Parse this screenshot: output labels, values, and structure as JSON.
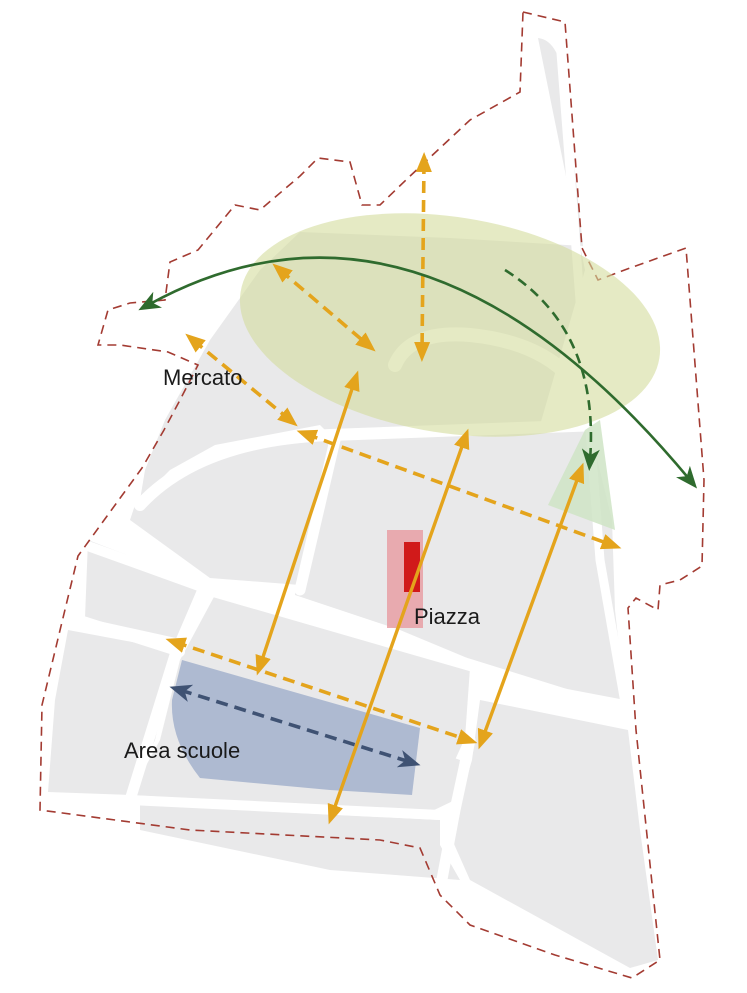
{
  "labels": {
    "mercato": "Mercato",
    "piazza": "Piazza",
    "area_scuole": "Area scuole"
  },
  "colors": {
    "background": "#ffffff",
    "block_fill": "#e9e9ea",
    "street": "#ffffff",
    "boundary": "#a33b32",
    "green_zone": "#d3dc9c",
    "green_arrow": "#2f6b2e",
    "orange_arrow": "#e4a41c",
    "school_area": "#9aa9c8",
    "school_arrow": "#3f5273",
    "piazza_halo": "#e79aa0",
    "piazza_core": "#d11a1a",
    "view_cone": "#cfe4c6"
  },
  "legend_icons": [
    "dashed-orange-arrow",
    "solid-orange-arrow",
    "green-curved-arrow",
    "blue-dashed-arrow"
  ]
}
